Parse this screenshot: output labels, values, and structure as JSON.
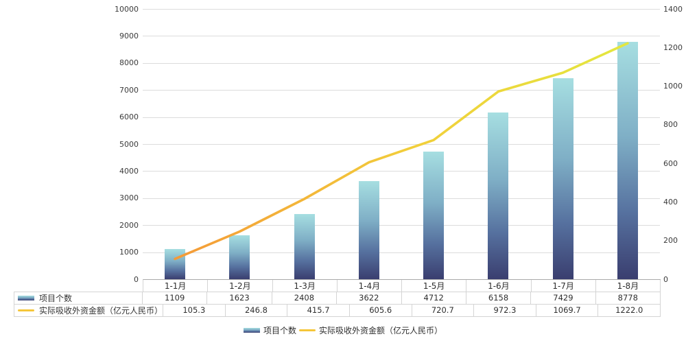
{
  "chart_data": {
    "type": "bar",
    "combo": "bar+line",
    "title": "",
    "xlabel": "",
    "ylabel": "",
    "categories": [
      "1-1月",
      "1-2月",
      "1-3月",
      "1-4月",
      "1-5月",
      "1-6月",
      "1-7月",
      "1-8月"
    ],
    "series": [
      {
        "name": "项目个数",
        "type": "bar",
        "axis": "left",
        "values": [
          1109,
          1623,
          2408,
          3622,
          4712,
          6158,
          7429,
          8778
        ]
      },
      {
        "name": "实际吸收外资金额（亿元人民币）",
        "type": "line",
        "axis": "right",
        "values": [
          105.3,
          246.8,
          415.7,
          605.6,
          720.7,
          972.3,
          1069.7,
          1222.0
        ]
      }
    ],
    "left_axis": {
      "min": 0,
      "max": 10000,
      "step": 1000,
      "tick_labels": [
        "0",
        "1000",
        "2000",
        "3000",
        "4000",
        "5000",
        "6000",
        "7000",
        "8000",
        "9000",
        "10000"
      ]
    },
    "right_axis": {
      "min": 0,
      "max": 1400,
      "step": 200,
      "tick_labels": [
        "0",
        "200",
        "400",
        "600",
        "800",
        "1000",
        "1200",
        "1400"
      ]
    },
    "grid": "horizontal",
    "legend_position": "bottom",
    "colors": {
      "bar_gradient": [
        "#A6DEE1",
        "#7FAFC6",
        "#56719F",
        "#3A3E6F"
      ],
      "line_gradient": [
        "#F49A38",
        "#F2CE3A",
        "#E3E73F"
      ],
      "legend_line": "#F5C63A",
      "gridline": "#DCDCDC",
      "axis_line": "#AAAAAA",
      "table_border": "#D4D4D4",
      "text": "#333333"
    }
  },
  "table": {
    "rows": [
      {
        "label": "项目个数",
        "swatch": "bar",
        "values": [
          "1109",
          "1623",
          "2408",
          "3622",
          "4712",
          "6158",
          "7429",
          "8778"
        ]
      },
      {
        "label": "实际吸收外资金额（亿元人民币）",
        "swatch": "line",
        "values": [
          "105.3",
          "246.8",
          "415.7",
          "605.6",
          "720.7",
          "972.3",
          "1069.7",
          "1222.0"
        ]
      }
    ]
  },
  "legend": {
    "items": [
      {
        "label": "项目个数",
        "swatch": "bar"
      },
      {
        "label": "实际吸收外资金额（亿元人民币）",
        "swatch": "line"
      }
    ]
  }
}
